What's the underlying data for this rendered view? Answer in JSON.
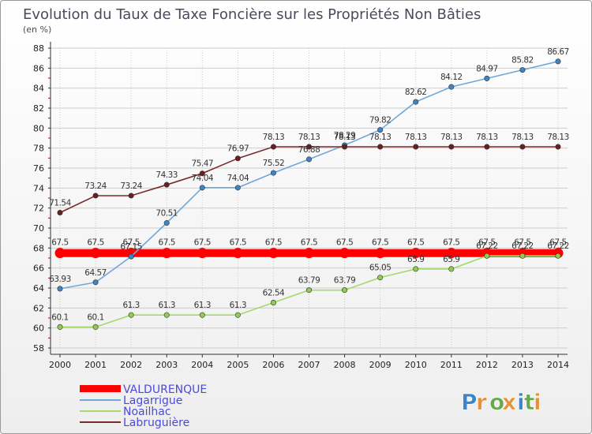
{
  "chart_data": {
    "type": "line",
    "title": "Evolution du Taux de Taxe Foncière sur les Propriétés Non Bâties",
    "subtitle": "(en %)",
    "x": [
      2000,
      2001,
      2002,
      2003,
      2004,
      2005,
      2006,
      2007,
      2008,
      2009,
      2010,
      2011,
      2012,
      2013,
      2014
    ],
    "x_tick_labels": [
      "2000",
      "2001",
      "2002",
      "2003",
      "2004",
      "2005",
      "2006",
      "2007",
      "2008",
      "2009",
      "2010",
      "2011",
      "2012",
      "2013",
      "2014"
    ],
    "ylim": [
      58,
      88
    ],
    "y_ticks": [
      58,
      60,
      62,
      64,
      66,
      68,
      70,
      72,
      74,
      76,
      78,
      80,
      82,
      84,
      86,
      88
    ],
    "y_tick_labels": [
      "58",
      "60",
      "62",
      "64",
      "66",
      "68",
      "70",
      "72",
      "74",
      "76",
      "78",
      "80",
      "82",
      "84",
      "86",
      "88"
    ],
    "grid": true,
    "legend_position": "bottom-left",
    "series": [
      {
        "name": "VALDURENQUE",
        "color": "#ff0000",
        "values": [
          67.5,
          67.5,
          67.5,
          67.5,
          67.5,
          67.5,
          67.5,
          67.5,
          67.5,
          67.5,
          67.5,
          67.5,
          67.5,
          67.5,
          67.5
        ],
        "labels": [
          "67.5",
          "67.5",
          "67.5",
          "67.5",
          "67.5",
          "67.5",
          "67.5",
          "67.5",
          "67.5",
          "67.5",
          "67.5",
          "67.5",
          "67.5",
          "67.5",
          "67.5"
        ]
      },
      {
        "name": "Lagarrigue",
        "color": "#6fa8dc",
        "marker": "#3d85c6",
        "values": [
          63.93,
          64.57,
          67.15,
          70.51,
          74.04,
          74.04,
          75.52,
          76.88,
          78.29,
          79.82,
          82.62,
          84.12,
          84.97,
          85.82,
          86.67
        ],
        "labels": [
          "63.93",
          "64.57",
          "67.15",
          "70.51",
          "74.04",
          "74.04",
          "75.52",
          "76.88",
          "78.29",
          "79.82",
          "82.62",
          "84.12",
          "84.97",
          "85.82",
          "86.67"
        ]
      },
      {
        "name": "Noailhac",
        "color": "#a5d96a",
        "marker": "#8fce4a",
        "values": [
          60.1,
          60.1,
          61.3,
          61.3,
          61.3,
          61.3,
          62.54,
          63.79,
          63.79,
          65.05,
          65.9,
          65.9,
          67.22,
          67.22,
          67.22
        ],
        "labels": [
          "60.1",
          "60.1",
          "61.3",
          "61.3",
          "61.3",
          "61.3",
          "62.54",
          "63.79",
          "63.79",
          "65.05",
          "65.9",
          "65.9",
          "67.22",
          "67.22",
          "67.22"
        ]
      },
      {
        "name": "Labruguière",
        "color": "#7b2a2a",
        "marker": "#6a1f1f",
        "values": [
          71.54,
          73.24,
          73.24,
          74.33,
          75.47,
          76.97,
          78.13,
          78.13,
          78.13,
          78.13,
          78.13,
          78.13,
          78.13,
          78.13,
          78.13
        ],
        "labels": [
          "71.54",
          "73.24",
          "73.24",
          "74.33",
          "75.47",
          "76.97",
          "78.13",
          "78.13",
          "78.13",
          "78.13",
          "78.13",
          "78.13",
          "78.13",
          "78.13",
          "78.13"
        ]
      }
    ]
  },
  "legend": {
    "items": [
      "VALDURENQUE",
      "Lagarrigue",
      "Noailhac",
      "Labruguière"
    ],
    "text_colors": [
      "#4a4adc",
      "#4a4adc",
      "#4a4adc",
      "#4a4adc"
    ]
  },
  "logo": {
    "text": "Proxiti",
    "letters": [
      "P",
      "r",
      "o",
      "x",
      "i",
      "t",
      "i"
    ],
    "colors": [
      "#3d85c6",
      "#e69138",
      "#6aa84f",
      "#e69138",
      "#3d85c6",
      "#6aa84f",
      "#e69138"
    ]
  }
}
